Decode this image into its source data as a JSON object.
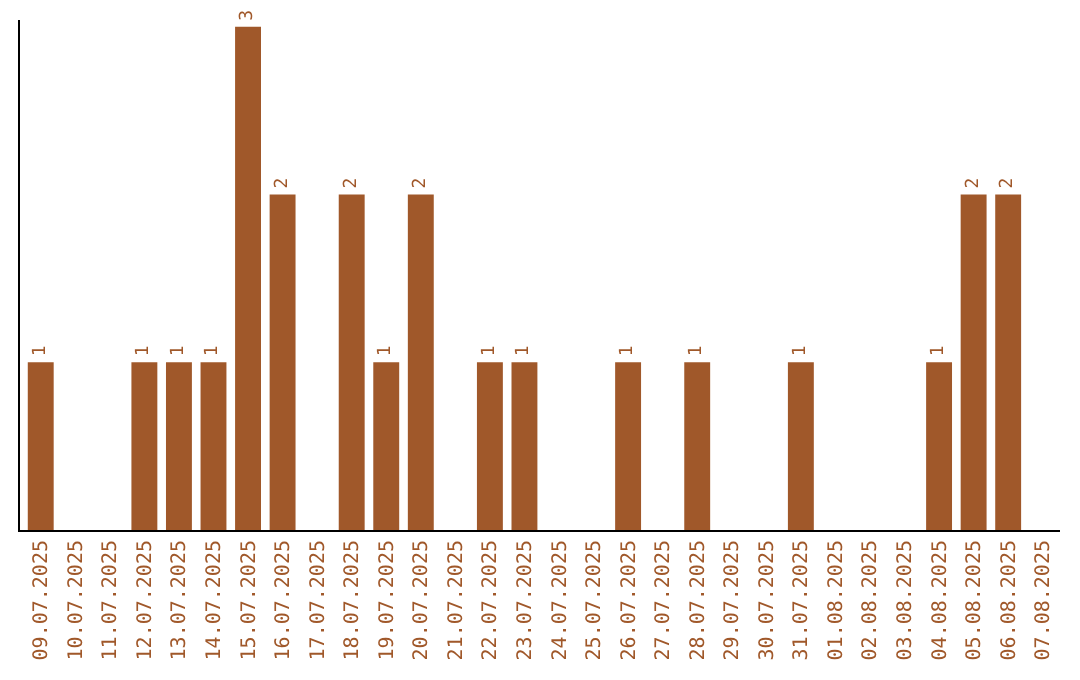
{
  "chart_data": {
    "type": "bar",
    "categories": [
      "09.07.2025",
      "10.07.2025",
      "11.07.2025",
      "12.07.2025",
      "13.07.2025",
      "14.07.2025",
      "15.07.2025",
      "16.07.2025",
      "17.07.2025",
      "18.07.2025",
      "19.07.2025",
      "20.07.2025",
      "21.07.2025",
      "22.07.2025",
      "23.07.2025",
      "24.07.2025",
      "25.07.2025",
      "26.07.2025",
      "27.07.2025",
      "28.07.2025",
      "29.07.2025",
      "30.07.2025",
      "31.07.2025",
      "01.08.2025",
      "02.08.2025",
      "03.08.2025",
      "04.08.2025",
      "05.08.2025",
      "06.08.2025",
      "07.08.2025"
    ],
    "values": [
      1,
      0,
      0,
      1,
      1,
      1,
      3,
      2,
      0,
      2,
      1,
      2,
      0,
      1,
      1,
      0,
      0,
      1,
      0,
      1,
      0,
      0,
      1,
      0,
      0,
      0,
      1,
      2,
      2,
      0
    ],
    "value_labels": [
      "1",
      null,
      null,
      "1",
      "1",
      "1",
      "3",
      "2",
      null,
      "2",
      "1",
      "2",
      null,
      "1",
      "1",
      null,
      null,
      "1",
      null,
      "1",
      null,
      null,
      "1",
      null,
      null,
      null,
      "1",
      "2",
      "2",
      null
    ],
    "color": "#a0582a",
    "ylim": [
      0,
      3.04
    ],
    "tick_labels": "x"
  }
}
